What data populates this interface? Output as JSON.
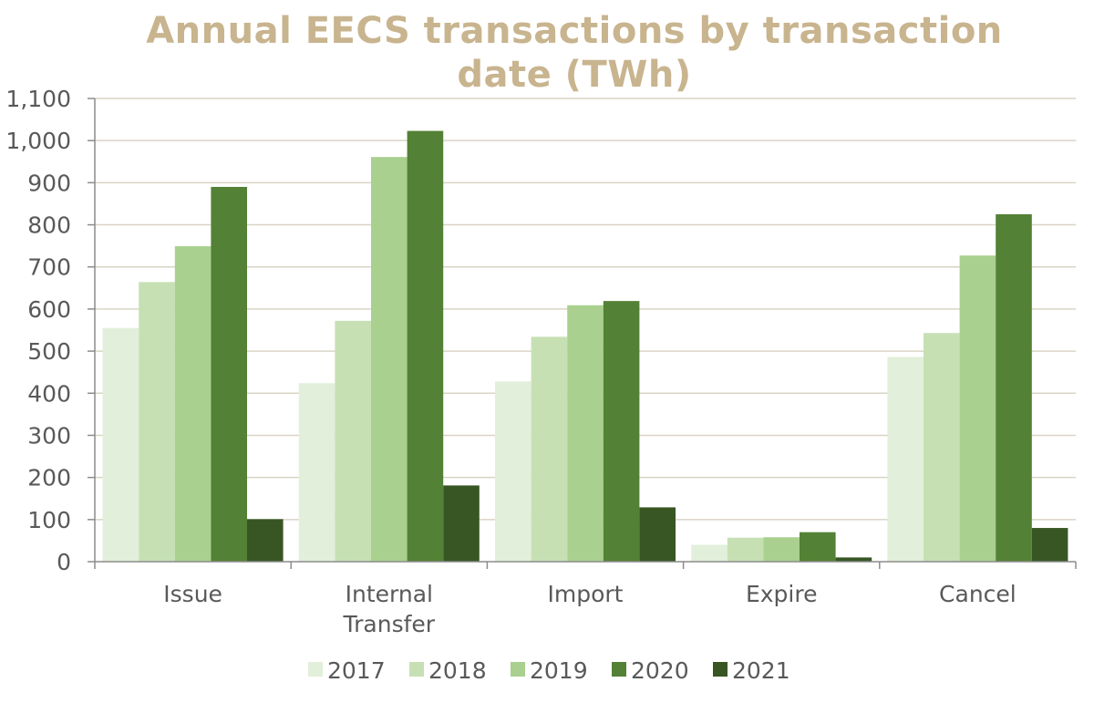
{
  "chart_data": {
    "type": "bar",
    "title": "Annual EECS transactions by transaction date (TWh)",
    "categories": [
      [
        "Issue"
      ],
      [
        "Internal",
        "Transfer"
      ],
      [
        "Import"
      ],
      [
        "Expire"
      ],
      [
        "Cancel"
      ]
    ],
    "series": [
      {
        "name": "2017",
        "color": "#e2efda",
        "values": [
          555,
          424,
          428,
          40,
          486
        ]
      },
      {
        "name": "2018",
        "color": "#c6e0b4",
        "values": [
          664,
          572,
          534,
          57,
          543
        ]
      },
      {
        "name": "2019",
        "color": "#a9d08e",
        "values": [
          749,
          961,
          609,
          58,
          727
        ]
      },
      {
        "name": "2020",
        "color": "#538135",
        "values": [
          890,
          1023,
          619,
          70,
          825
        ]
      },
      {
        "name": "2021",
        "color": "#375623",
        "values": [
          101,
          181,
          129,
          10,
          80
        ]
      }
    ],
    "ylim": [
      0,
      1100
    ],
    "yticks": [
      0,
      100,
      200,
      300,
      400,
      500,
      600,
      700,
      800,
      900,
      1000,
      1100
    ],
    "ytick_labels": [
      "0",
      "100",
      "200",
      "300",
      "400",
      "500",
      "600",
      "700",
      "800",
      "900",
      "1,000",
      "1,100"
    ],
    "grid": true,
    "legend": "bottom",
    "colors": {
      "title": "#c8b48e",
      "gridline": "#d9d4c5",
      "axis": "#8c8c8c",
      "text": "#595959"
    }
  }
}
